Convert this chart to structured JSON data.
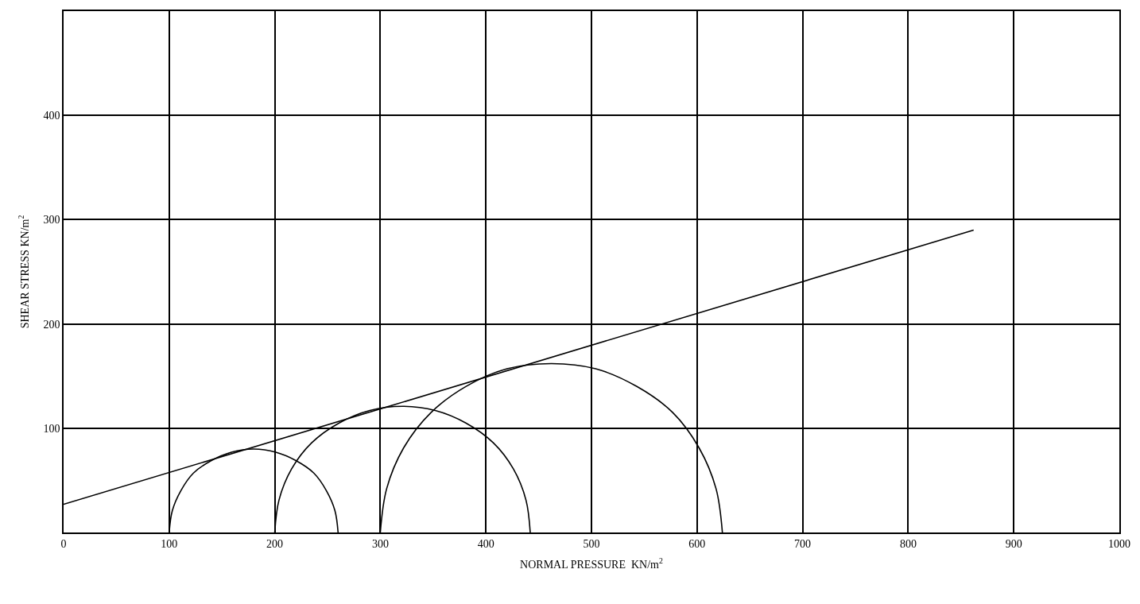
{
  "chart_data": {
    "type": "line",
    "xlabel": "NORMAL PRESSURE  KN/m$^{2}$",
    "ylabel": "SHEAR STRESS KN/m$^{2}$",
    "xlim": [
      0,
      1000
    ],
    "ylim": [
      0,
      500
    ],
    "xticks": [
      0,
      100,
      200,
      300,
      400,
      500,
      600,
      700,
      800,
      900,
      1000
    ],
    "yticks": [
      {
        "value": 0,
        "label": null
      },
      100,
      200,
      300,
      400,
      {
        "value": 500,
        "label": null
      }
    ],
    "grid": true,
    "marker": "none",
    "line_style": "solid",
    "series": [
      {
        "color": "#000000",
        "x": [
          0,
          862
        ],
        "values": [
          27,
          290
        ]
      },
      {
        "color": "#000000",
        "x": [
          100,
          103,
          111,
          123,
          140,
          159,
          180,
          201,
          220,
          237,
          249,
          257,
          260
        ],
        "values": [
          0,
          21,
          40,
          57,
          69,
          77,
          80,
          77,
          69,
          57,
          40,
          21,
          0
        ]
      },
      {
        "color": "#000000",
        "x": [
          200,
          204,
          216,
          235,
          261,
          290,
          321,
          352,
          381,
          407,
          426,
          438,
          442
        ],
        "values": [
          0,
          31,
          61,
          86,
          105,
          117,
          121,
          117,
          105,
          86,
          61,
          31,
          0
        ]
      },
      {
        "color": "#000000",
        "x": [
          300,
          306,
          322,
          348,
          381,
          420,
          462,
          504,
          543,
          577,
          602,
          618,
          624
        ],
        "values": [
          0,
          42,
          81,
          115,
          140,
          157,
          162,
          157,
          140,
          115,
          81,
          42,
          0
        ]
      }
    ]
  }
}
